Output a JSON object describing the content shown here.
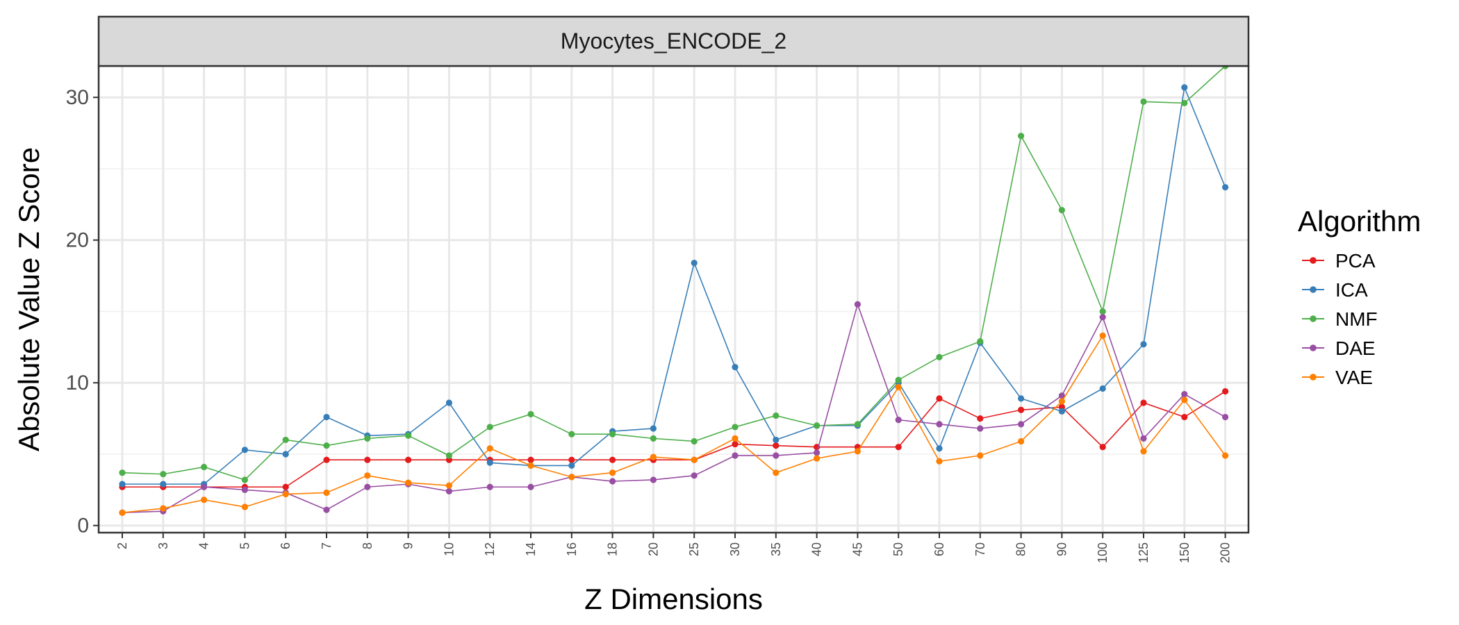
{
  "chart_data": {
    "type": "line",
    "title": "",
    "facet_label": "Myocytes_ENCODE_2",
    "xlabel": "Z Dimensions",
    "ylabel": "Absolute Value Z Score",
    "categories": [
      "2",
      "3",
      "4",
      "5",
      "6",
      "7",
      "8",
      "9",
      "10",
      "12",
      "14",
      "16",
      "18",
      "20",
      "25",
      "30",
      "35",
      "40",
      "45",
      "50",
      "60",
      "70",
      "80",
      "90",
      "100",
      "125",
      "150",
      "200"
    ],
    "ylim": [
      -0.5,
      32.2
    ],
    "yticks": [
      0,
      10,
      20,
      30
    ],
    "grid": true,
    "legend": {
      "title": "Algorithm",
      "position": "right"
    },
    "series": [
      {
        "name": "PCA",
        "color": "#e41a1c",
        "values": [
          2.7,
          2.7,
          2.7,
          2.7,
          2.7,
          4.6,
          4.6,
          4.6,
          4.6,
          4.6,
          4.6,
          4.6,
          4.6,
          4.6,
          4.6,
          5.7,
          5.6,
          5.5,
          5.5,
          5.5,
          8.9,
          7.5,
          8.1,
          8.3,
          5.5,
          8.6,
          7.6,
          9.4
        ]
      },
      {
        "name": "ICA",
        "color": "#377eb8",
        "values": [
          2.9,
          2.9,
          2.9,
          5.3,
          5.0,
          7.6,
          6.3,
          6.4,
          8.6,
          4.4,
          4.2,
          4.2,
          6.6,
          6.8,
          18.4,
          11.1,
          6.0,
          7.0,
          7.0,
          10.0,
          5.4,
          12.8,
          8.9,
          8.0,
          9.6,
          12.7,
          30.7,
          23.7
        ]
      },
      {
        "name": "NMF",
        "color": "#4daf4a",
        "values": [
          3.7,
          3.6,
          4.1,
          3.2,
          6.0,
          5.6,
          6.1,
          6.3,
          4.9,
          6.9,
          7.8,
          6.4,
          6.4,
          6.1,
          5.9,
          6.9,
          7.7,
          7.0,
          7.1,
          10.2,
          11.8,
          12.9,
          27.3,
          22.1,
          15.0,
          29.7,
          29.6,
          32.2
        ]
      },
      {
        "name": "DAE",
        "color": "#984ea3",
        "values": [
          0.9,
          1.0,
          2.7,
          2.5,
          2.3,
          1.1,
          2.7,
          2.9,
          2.4,
          2.7,
          2.7,
          3.4,
          3.1,
          3.2,
          3.5,
          4.9,
          4.9,
          5.1,
          15.5,
          7.4,
          7.1,
          6.8,
          7.1,
          9.1,
          14.6,
          6.1,
          9.2,
          7.6
        ]
      },
      {
        "name": "VAE",
        "color": "#ff7f00",
        "values": [
          0.9,
          1.2,
          1.8,
          1.3,
          2.2,
          2.3,
          3.5,
          3.0,
          2.8,
          5.4,
          4.2,
          3.4,
          3.7,
          4.8,
          4.6,
          6.1,
          3.7,
          4.7,
          5.2,
          9.7,
          4.5,
          4.9,
          5.9,
          8.7,
          13.3,
          5.2,
          8.8,
          4.9
        ]
      }
    ]
  }
}
